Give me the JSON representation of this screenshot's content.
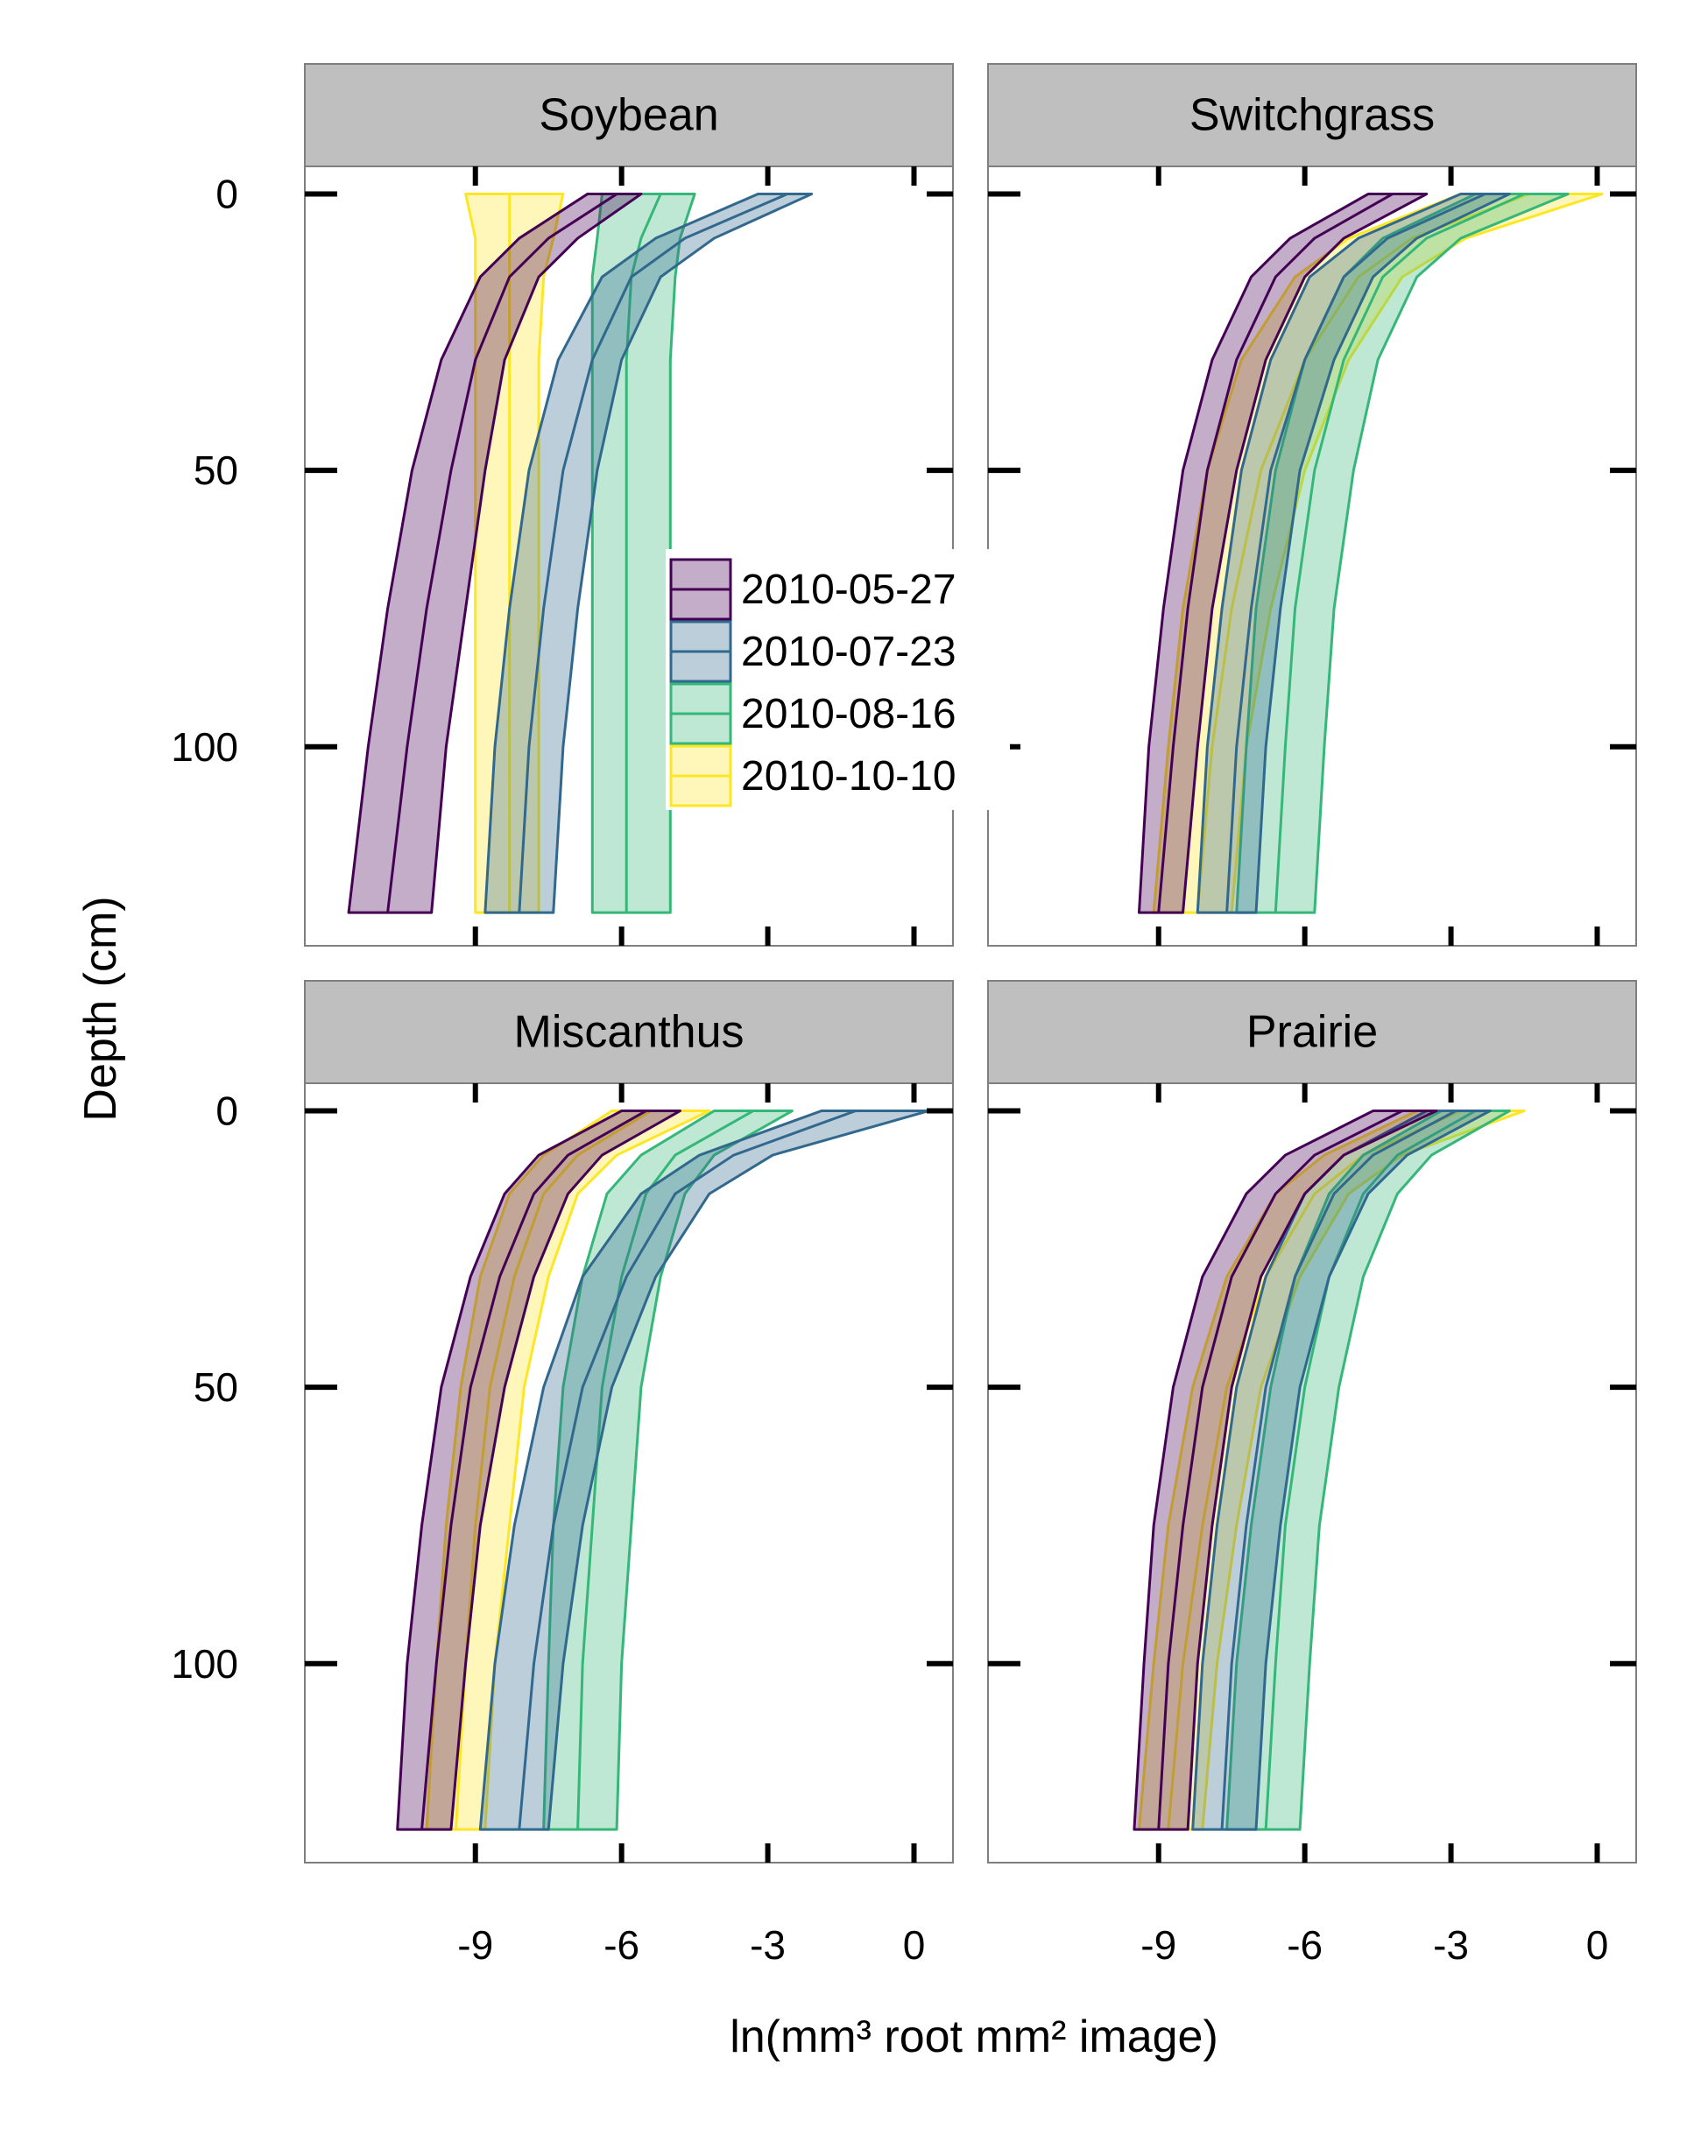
{
  "chart_data": {
    "type": "area",
    "xlabel": "ln(mm³ root mm² image)",
    "ylabel": "Depth (cm)",
    "xlim": [
      -12.5,
      0.8
    ],
    "ylim": [
      -5,
      136
    ],
    "y_reversed": true,
    "x_ticks": [
      -9,
      -6,
      -3,
      0
    ],
    "y_ticks": [
      0,
      50,
      100
    ],
    "grid": false,
    "legend_position": "inside-center",
    "series_names": [
      "2010-05-27",
      "2010-07-23",
      "2010-08-16",
      "2010-10-10"
    ],
    "colors": {
      "2010-05-27": "#440154",
      "2010-07-23": "#31688e",
      "2010-08-16": "#35b779",
      "2010-10-10": "#fde725"
    },
    "panels": [
      {
        "title": "Soybean",
        "series": [
          {
            "name": "2010-05-27",
            "depth": [
              0,
              8,
              15,
              30,
              50,
              75,
              100,
              130
            ],
            "mean": [
              -6.1,
              -7.5,
              -8.3,
              -9.0,
              -9.5,
              -10.0,
              -10.4,
              -10.8
            ],
            "lower": [
              -6.7,
              -8.1,
              -8.9,
              -9.7,
              -10.3,
              -10.8,
              -11.2,
              -11.6
            ],
            "upper": [
              -5.6,
              -6.9,
              -7.7,
              -8.4,
              -8.8,
              -9.2,
              -9.6,
              -9.9
            ]
          },
          {
            "name": "2010-07-23",
            "depth": [
              0,
              8,
              15,
              30,
              50,
              75,
              100,
              130
            ],
            "mean": [
              -2.6,
              -4.7,
              -5.8,
              -6.6,
              -7.2,
              -7.6,
              -7.9,
              -8.1
            ],
            "lower": [
              -3.2,
              -5.3,
              -6.4,
              -7.3,
              -7.9,
              -8.3,
              -8.6,
              -8.8
            ],
            "upper": [
              -2.1,
              -4.1,
              -5.2,
              -6.0,
              -6.5,
              -6.9,
              -7.2,
              -7.4
            ]
          },
          {
            "name": "2010-08-16",
            "depth": [
              0,
              8,
              15,
              30,
              50,
              75,
              100,
              130
            ],
            "mean": [
              -5.2,
              -5.6,
              -5.8,
              -5.9,
              -5.9,
              -5.9,
              -5.9,
              -5.9
            ],
            "lower": [
              -6.4,
              -6.5,
              -6.6,
              -6.6,
              -6.6,
              -6.6,
              -6.6,
              -6.6
            ],
            "upper": [
              -4.5,
              -4.8,
              -4.9,
              -5.0,
              -5.0,
              -5.0,
              -5.0,
              -5.0
            ]
          },
          {
            "name": "2010-10-10",
            "depth": [
              0,
              8,
              15,
              30,
              50,
              75,
              100,
              130
            ],
            "mean": [
              -8.3,
              -8.3,
              -8.3,
              -8.3,
              -8.3,
              -8.3,
              -8.3,
              -8.3
            ],
            "lower": [
              -9.2,
              -9.0,
              -9.0,
              -9.0,
              -9.0,
              -9.0,
              -9.0,
              -9.0
            ],
            "upper": [
              -7.2,
              -7.4,
              -7.6,
              -7.7,
              -7.7,
              -7.7,
              -7.7,
              -7.7
            ]
          }
        ]
      },
      {
        "title": "Switchgrass",
        "series": [
          {
            "name": "2010-05-27",
            "depth": [
              0,
              8,
              15,
              30,
              50,
              75,
              100,
              130
            ],
            "mean": [
              -4.2,
              -5.8,
              -6.6,
              -7.4,
              -8.0,
              -8.4,
              -8.7,
              -9.0
            ],
            "lower": [
              -4.7,
              -6.3,
              -7.1,
              -7.9,
              -8.5,
              -8.9,
              -9.2,
              -9.4
            ],
            "upper": [
              -3.5,
              -5.2,
              -6.0,
              -6.8,
              -7.4,
              -7.9,
              -8.2,
              -8.5
            ]
          },
          {
            "name": "2010-07-23",
            "depth": [
              0,
              8,
              15,
              30,
              50,
              75,
              100,
              130
            ],
            "mean": [
              -2.3,
              -4.3,
              -5.2,
              -6.0,
              -6.7,
              -7.1,
              -7.4,
              -7.6
            ],
            "lower": [
              -2.8,
              -4.9,
              -5.9,
              -6.7,
              -7.3,
              -7.7,
              -8.0,
              -8.2
            ],
            "upper": [
              -1.8,
              -3.7,
              -4.6,
              -5.4,
              -6.1,
              -6.5,
              -6.8,
              -7.0
            ]
          },
          {
            "name": "2010-08-16",
            "depth": [
              0,
              8,
              15,
              30,
              50,
              75,
              100,
              130
            ],
            "mean": [
              -1.5,
              -3.5,
              -4.4,
              -5.2,
              -5.8,
              -6.2,
              -6.4,
              -6.6
            ],
            "lower": [
              -2.5,
              -4.4,
              -5.2,
              -6.0,
              -6.6,
              -7.0,
              -7.2,
              -7.4
            ],
            "upper": [
              -0.6,
              -2.8,
              -3.7,
              -4.5,
              -5.0,
              -5.4,
              -5.6,
              -5.8
            ]
          },
          {
            "name": "2010-10-10",
            "depth": [
              0,
              8,
              15,
              30,
              50,
              75,
              100,
              130
            ],
            "mean": [
              -1.4,
              -3.8,
              -4.9,
              -6.0,
              -6.9,
              -7.5,
              -7.9,
              -8.2
            ],
            "lower": [
              -2.8,
              -5.1,
              -6.2,
              -7.3,
              -8.0,
              -8.5,
              -8.8,
              -9.1
            ],
            "upper": [
              0.1,
              -2.7,
              -4.0,
              -5.1,
              -6.0,
              -6.7,
              -7.2,
              -7.5
            ]
          }
        ]
      },
      {
        "title": "Miscanthus",
        "series": [
          {
            "name": "2010-05-27",
            "depth": [
              0,
              8,
              15,
              30,
              50,
              75,
              100,
              130
            ],
            "mean": [
              -5.5,
              -7.1,
              -7.8,
              -8.5,
              -9.1,
              -9.5,
              -9.8,
              -10.1
            ],
            "lower": [
              -6.0,
              -7.7,
              -8.4,
              -9.1,
              -9.7,
              -10.1,
              -10.4,
              -10.6
            ],
            "upper": [
              -4.8,
              -6.4,
              -7.1,
              -7.8,
              -8.4,
              -8.9,
              -9.2,
              -9.5
            ]
          },
          {
            "name": "2010-07-23",
            "depth": [
              0,
              8,
              15,
              30,
              50,
              75,
              100,
              130
            ],
            "mean": [
              -1.2,
              -3.7,
              -4.9,
              -5.9,
              -6.8,
              -7.4,
              -7.8,
              -8.1
            ],
            "lower": [
              -1.9,
              -4.4,
              -5.6,
              -6.8,
              -7.6,
              -8.2,
              -8.6,
              -8.9
            ],
            "upper": [
              0.3,
              -2.9,
              -4.2,
              -5.3,
              -6.2,
              -6.8,
              -7.2,
              -7.5
            ]
          },
          {
            "name": "2010-08-16",
            "depth": [
              0,
              8,
              15,
              30,
              50,
              75,
              100,
              130
            ],
            "mean": [
              -3.3,
              -4.9,
              -5.5,
              -6.0,
              -6.4,
              -6.6,
              -6.8,
              -6.9
            ],
            "lower": [
              -4.1,
              -5.6,
              -6.3,
              -6.8,
              -7.2,
              -7.4,
              -7.5,
              -7.6
            ],
            "upper": [
              -2.5,
              -4.1,
              -4.7,
              -5.2,
              -5.6,
              -5.8,
              -6.0,
              -6.1
            ]
          },
          {
            "name": "2010-10-10",
            "depth": [
              0,
              8,
              15,
              30,
              50,
              75,
              100,
              130
            ],
            "mean": [
              -5.4,
              -6.9,
              -7.6,
              -8.2,
              -8.7,
              -9.0,
              -9.2,
              -9.4
            ],
            "lower": [
              -6.2,
              -7.6,
              -8.3,
              -8.9,
              -9.3,
              -9.6,
              -9.8,
              -10.0
            ],
            "upper": [
              -4.2,
              -6.1,
              -6.9,
              -7.5,
              -8.0,
              -8.3,
              -8.6,
              -8.8
            ]
          }
        ]
      },
      {
        "title": "Prairie",
        "series": [
          {
            "name": "2010-05-27",
            "depth": [
              0,
              8,
              15,
              30,
              50,
              75,
              100,
              130
            ],
            "mean": [
              -4.0,
              -5.8,
              -6.6,
              -7.5,
              -8.1,
              -8.5,
              -8.8,
              -9.0
            ],
            "lower": [
              -4.6,
              -6.4,
              -7.2,
              -8.1,
              -8.7,
              -9.1,
              -9.3,
              -9.5
            ],
            "upper": [
              -3.3,
              -5.2,
              -6.0,
              -6.9,
              -7.5,
              -7.9,
              -8.2,
              -8.4
            ]
          },
          {
            "name": "2010-07-23",
            "depth": [
              0,
              8,
              15,
              30,
              50,
              75,
              100,
              130
            ],
            "mean": [
              -2.9,
              -4.6,
              -5.4,
              -6.2,
              -6.8,
              -7.2,
              -7.5,
              -7.7
            ],
            "lower": [
              -3.5,
              -5.2,
              -6.0,
              -6.8,
              -7.4,
              -7.8,
              -8.1,
              -8.3
            ],
            "upper": [
              -2.2,
              -3.9,
              -4.7,
              -5.5,
              -6.1,
              -6.5,
              -6.8,
              -7.0
            ]
          },
          {
            "name": "2010-08-16",
            "depth": [
              0,
              8,
              15,
              30,
              50,
              75,
              100,
              130
            ],
            "mean": [
              -2.5,
              -4.1,
              -4.8,
              -5.5,
              -6.0,
              -6.4,
              -6.6,
              -6.8
            ],
            "lower": [
              -3.2,
              -4.8,
              -5.5,
              -6.2,
              -6.7,
              -7.1,
              -7.4,
              -7.6
            ],
            "upper": [
              -1.8,
              -3.4,
              -4.1,
              -4.8,
              -5.3,
              -5.7,
              -5.9,
              -6.1
            ]
          },
          {
            "name": "2010-10-10",
            "depth": [
              0,
              8,
              15,
              30,
              50,
              75,
              100,
              130
            ],
            "mean": [
              -2.8,
              -4.8,
              -5.8,
              -6.8,
              -7.6,
              -8.1,
              -8.5,
              -8.8
            ],
            "lower": [
              -3.7,
              -5.6,
              -6.6,
              -7.6,
              -8.3,
              -8.8,
              -9.1,
              -9.4
            ],
            "upper": [
              -1.5,
              -4.0,
              -5.1,
              -6.1,
              -6.9,
              -7.4,
              -7.8,
              -8.1
            ]
          }
        ]
      }
    ]
  }
}
